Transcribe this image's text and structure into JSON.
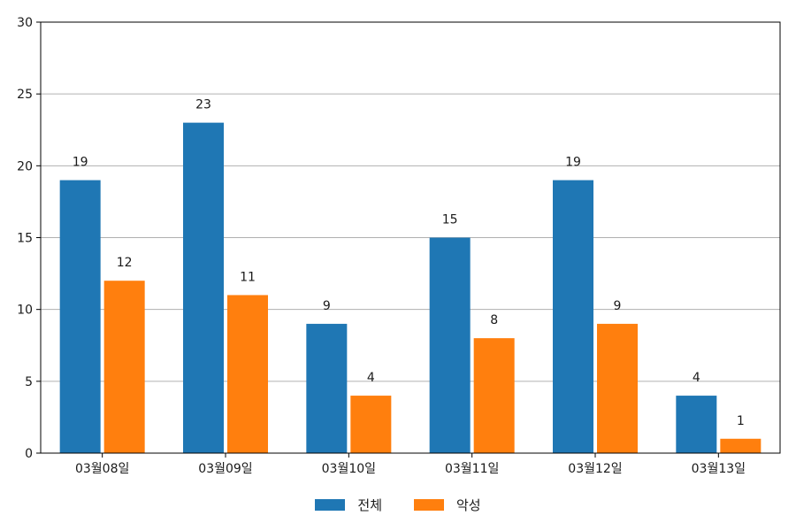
{
  "chart_data": {
    "type": "bar",
    "categories": [
      "03월08일",
      "03월09일",
      "03월10일",
      "03월11일",
      "03월12일",
      "03월13일"
    ],
    "series": [
      {
        "name": "전체",
        "values": [
          19,
          23,
          9,
          15,
          19,
          4
        ],
        "color": "#1f77b4"
      },
      {
        "name": "악성",
        "values": [
          12,
          11,
          4,
          8,
          9,
          1
        ],
        "color": "#ff7f0e"
      }
    ],
    "title": "",
    "xlabel": "",
    "ylabel": "",
    "ylim": [
      0,
      30
    ],
    "yticks": [
      0,
      5,
      10,
      15,
      20,
      25,
      30
    ],
    "grid": "horizontal",
    "data_labels": true,
    "legend_position": "bottom-center"
  }
}
